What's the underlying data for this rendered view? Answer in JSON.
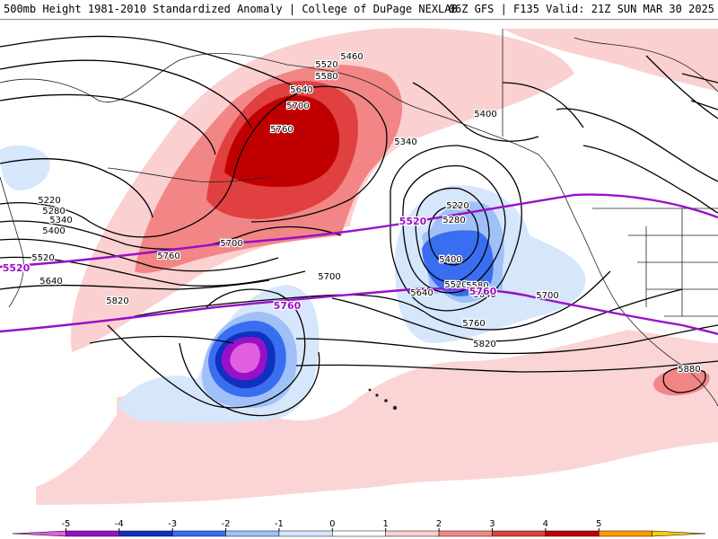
{
  "header": {
    "left_title": "500mb Height 1981-2010 Standardized Anomaly | College of DuPage NEXLAB",
    "right_title": "06Z GFS | F135 Valid: 21Z SUN MAR 30 2025"
  },
  "colorbar": {
    "ticks": [
      "-5",
      "-4",
      "-3",
      "-2",
      "-1",
      "0",
      "1",
      "2",
      "3",
      "4",
      "5"
    ],
    "colors": [
      "#e060e0",
      "#9a10c8",
      "#1030c0",
      "#3a6ef0",
      "#a0c0f8",
      "#d6e6fb",
      "#ffffff",
      "#fbd0d0",
      "#f28686",
      "#e04040",
      "#c00000",
      "#ff9a00",
      "#f8cc10"
    ]
  },
  "contours": {
    "height_labels": [
      "5460",
      "5520",
      "5580",
      "5640",
      "5700",
      "5760",
      "5400",
      "5340",
      "5220",
      "5280",
      "5340",
      "5400",
      "5520",
      "5640",
      "5760",
      "5820",
      "5700",
      "5640",
      "5220",
      "5280",
      "5400",
      "5520",
      "5580",
      "5640",
      "5700",
      "5760",
      "5820",
      "5880",
      "5700"
    ],
    "purple_labels": [
      "5520",
      "5520",
      "5760",
      "5760"
    ],
    "purple_color": "#9a10c8"
  }
}
